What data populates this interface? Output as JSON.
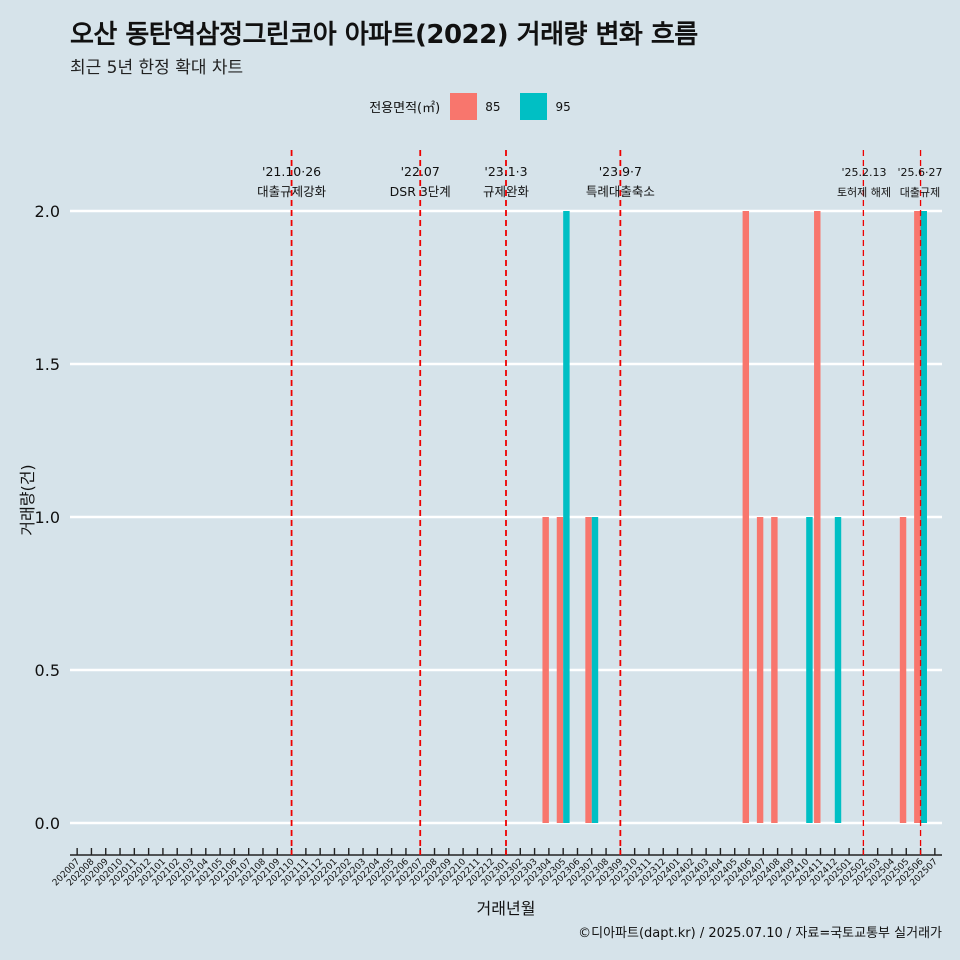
{
  "title": "오산 동탄역삼정그린코아 아파트(2022) 거래량 변화 흐름",
  "subtitle": "최근 5년 한정 확대 차트",
  "legend": {
    "title": "전용면적(㎡)",
    "items": [
      {
        "label": "85",
        "color": "#F8766D"
      },
      {
        "label": "95",
        "color": "#00BFC4"
      }
    ]
  },
  "caption": "©디아파트(dapt.kr) / 2025.07.10 / 자료=국토교통부 실거래가",
  "chart_data": {
    "type": "bar",
    "xlabel": "거래년월",
    "ylabel": "거래량(건)",
    "ylim": [
      0,
      2
    ],
    "yticks": [
      "0.0",
      "0.5",
      "1.0",
      "1.5",
      "2.0"
    ],
    "categories": [
      "202007",
      "202008",
      "202009",
      "202010",
      "202011",
      "202012",
      "202101",
      "202102",
      "202103",
      "202104",
      "202105",
      "202106",
      "202107",
      "202108",
      "202109",
      "202110",
      "202111",
      "202112",
      "202201",
      "202202",
      "202203",
      "202204",
      "202205",
      "202206",
      "202207",
      "202208",
      "202209",
      "202210",
      "202211",
      "202212",
      "202301",
      "202302",
      "202303",
      "202304",
      "202305",
      "202306",
      "202307",
      "202308",
      "202309",
      "202310",
      "202311",
      "202312",
      "202401",
      "202402",
      "202403",
      "202404",
      "202405",
      "202406",
      "202407",
      "202408",
      "202409",
      "202410",
      "202411",
      "202412",
      "202501",
      "202502",
      "202503",
      "202504",
      "202505",
      "202506",
      "202507"
    ],
    "series": [
      {
        "name": "85",
        "color": "#F8766D",
        "points": [
          {
            "x": "202304",
            "y": 1
          },
          {
            "x": "202305",
            "y": 1
          },
          {
            "x": "202307",
            "y": 1
          },
          {
            "x": "202402",
            "y": 0
          },
          {
            "x": "202406",
            "y": 2
          },
          {
            "x": "202407",
            "y": 1
          },
          {
            "x": "202408",
            "y": 1
          },
          {
            "x": "202411",
            "y": 2
          },
          {
            "x": "202505",
            "y": 1
          },
          {
            "x": "202506",
            "y": 2
          }
        ]
      },
      {
        "name": "95",
        "color": "#00BFC4",
        "points": [
          {
            "x": "202305",
            "y": 2
          },
          {
            "x": "202307",
            "y": 1
          },
          {
            "x": "202410",
            "y": 1
          },
          {
            "x": "202412",
            "y": 1
          },
          {
            "x": "202506",
            "y": 2
          }
        ]
      }
    ],
    "annotations": [
      {
        "x": "202110",
        "date": "'21.10·26",
        "label": "대출규제강화"
      },
      {
        "x": "202207",
        "date": "'22.07",
        "label": "DSR 3단계"
      },
      {
        "x": "202301",
        "date": "'23.1·3",
        "label": "규제완화"
      },
      {
        "x": "202309",
        "date": "'23.9·7",
        "label": "특례대출축소"
      },
      {
        "x": "202502",
        "date": "'25.2.13",
        "label": "토허제 해제"
      },
      {
        "x": "202506",
        "date": "'25.6·27",
        "label": "대출규제"
      }
    ],
    "grid": true,
    "legend_position": "top"
  }
}
